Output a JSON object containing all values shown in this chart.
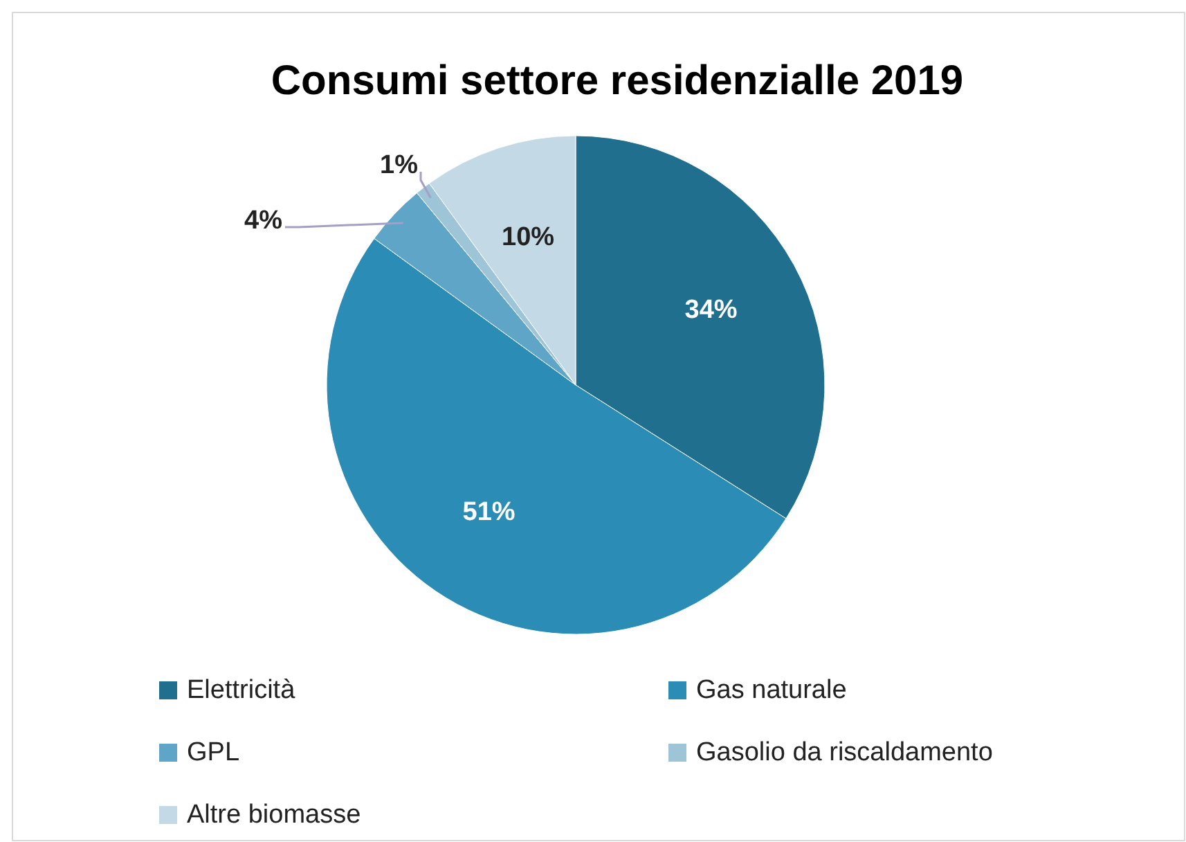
{
  "chart_data": {
    "type": "pie",
    "title": "Consumi settore residenzialle 2019",
    "categories": [
      "Elettricità",
      "Gas naturale",
      "GPL",
      "Gasolio da riscaldamento",
      "Altre biomasse"
    ],
    "values": [
      34,
      51,
      4,
      1,
      10
    ],
    "colors": [
      "#216f8e",
      "#2b8db6",
      "#5fa5c7",
      "#9ec4d8",
      "#c3dae6"
    ],
    "value_labels": [
      "34%",
      "51%",
      "4%",
      "1%",
      "10%"
    ],
    "legend": "bottom"
  }
}
